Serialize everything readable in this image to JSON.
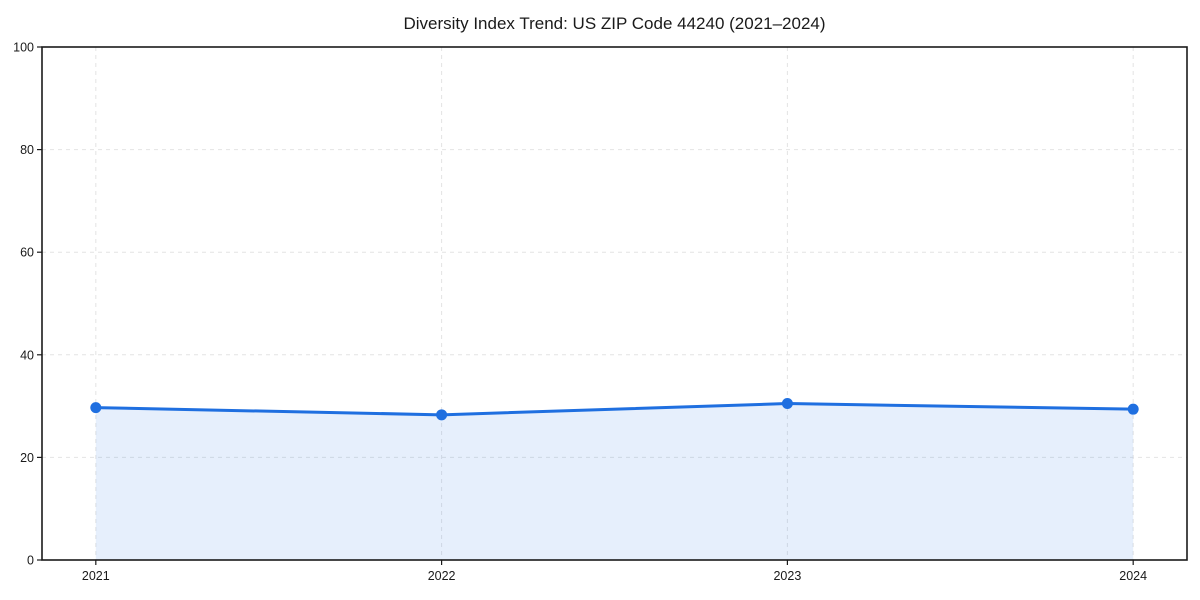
{
  "chart_data": {
    "type": "area",
    "categories": [
      "2021",
      "2022",
      "2023",
      "2024"
    ],
    "values": [
      29.7,
      28.3,
      30.5,
      29.4
    ],
    "title": "Diversity Index Trend: US ZIP Code 44240 (2021–2024)",
    "xlabel": "",
    "ylabel": "",
    "ylim": [
      0,
      100
    ],
    "yticks": [
      0,
      20,
      40,
      60,
      80,
      100
    ],
    "grid": true,
    "grid_style": "dashed",
    "legend": "none",
    "line_color": "#1f6fe0",
    "marker_color": "#1f6fe0",
    "fill_color": "rgba(31,111,224,0.11)",
    "grid_color": "#e4e4e4",
    "frame_color": "#1a1a1a",
    "background_color": "#ffffff"
  }
}
